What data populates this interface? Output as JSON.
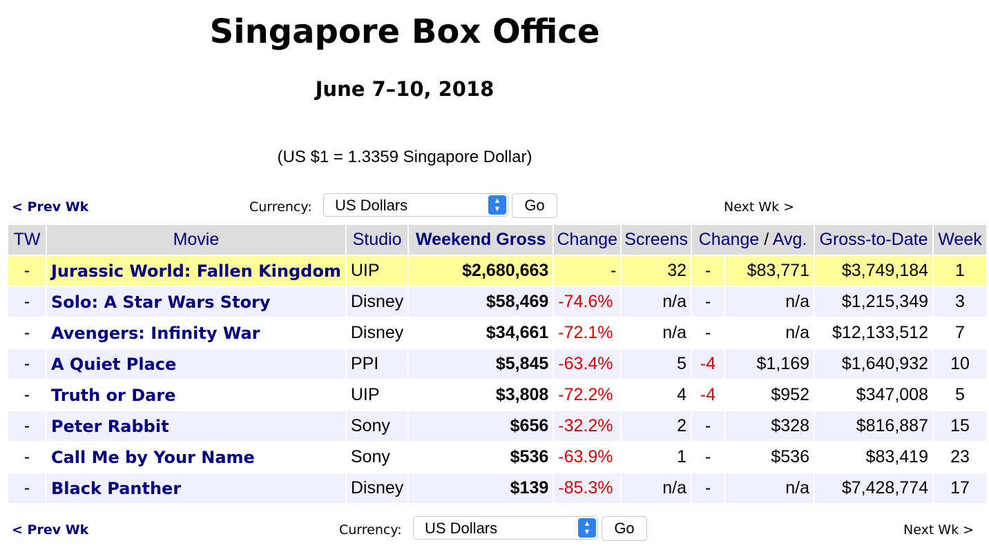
{
  "page": {
    "title": "Singapore Box Office",
    "date_range": "June 7–10, 2018",
    "exchange_rate": "(US $1 = 1.3359 Singapore Dollar)"
  },
  "nav": {
    "prev_label": "< Prev Wk",
    "next_label": "Next Wk >",
    "currency_label": "Currency:",
    "currency_value": "US Dollars",
    "go_label": "Go"
  },
  "table": {
    "headers": {
      "tw": "TW",
      "movie": "Movie",
      "studio": "Studio",
      "weekend_gross": "Weekend Gross",
      "change": "Change",
      "screens": "Screens",
      "change2": "Change",
      "slash": "/",
      "avg": "Avg.",
      "gross_to_date": "Gross-to-Date",
      "week": "Week"
    },
    "rows": [
      {
        "tw": "-",
        "movie": "Jurassic World: Fallen Kingdom",
        "studio": "UIP",
        "gross": "$2,680,663",
        "change": "-",
        "screens": "32",
        "screen_change": "-",
        "avg": "$83,771",
        "gtd": "$3,749,184",
        "week": "1"
      },
      {
        "tw": "-",
        "movie": "Solo: A Star Wars Story",
        "studio": "Disney",
        "gross": "$58,469",
        "change": "-74.6%",
        "screens": "n/a",
        "screen_change": "-",
        "avg": "n/a",
        "gtd": "$1,215,349",
        "week": "3"
      },
      {
        "tw": "-",
        "movie": "Avengers: Infinity War",
        "studio": "Disney",
        "gross": "$34,661",
        "change": "-72.1%",
        "screens": "n/a",
        "screen_change": "-",
        "avg": "n/a",
        "gtd": "$12,133,512",
        "week": "7"
      },
      {
        "tw": "-",
        "movie": "A Quiet Place",
        "studio": "PPI",
        "gross": "$5,845",
        "change": "-63.4%",
        "screens": "5",
        "screen_change": "-4",
        "avg": "$1,169",
        "gtd": "$1,640,932",
        "week": "10"
      },
      {
        "tw": "-",
        "movie": "Truth or Dare",
        "studio": "UIP",
        "gross": "$3,808",
        "change": "-72.2%",
        "screens": "4",
        "screen_change": "-4",
        "avg": "$952",
        "gtd": "$347,008",
        "week": "5"
      },
      {
        "tw": "-",
        "movie": "Peter Rabbit",
        "studio": "Sony",
        "gross": "$656",
        "change": "-32.2%",
        "screens": "2",
        "screen_change": "-",
        "avg": "$328",
        "gtd": "$816,887",
        "week": "15"
      },
      {
        "tw": "-",
        "movie": "Call Me by Your Name",
        "studio": "Sony",
        "gross": "$536",
        "change": "-63.9%",
        "screens": "1",
        "screen_change": "-",
        "avg": "$536",
        "gtd": "$83,419",
        "week": "23"
      },
      {
        "tw": "-",
        "movie": "Black Panther",
        "studio": "Disney",
        "gross": "$139",
        "change": "-85.3%",
        "screens": "n/a",
        "screen_change": "-",
        "avg": "n/a",
        "gtd": "$7,428,774",
        "week": "17"
      }
    ]
  },
  "colors": {
    "link": "#000080",
    "negative": "#e00000",
    "highlight_row": "#ffff99",
    "alt_row": "#f0f0ff",
    "header_bg": "#dcdcdc"
  }
}
